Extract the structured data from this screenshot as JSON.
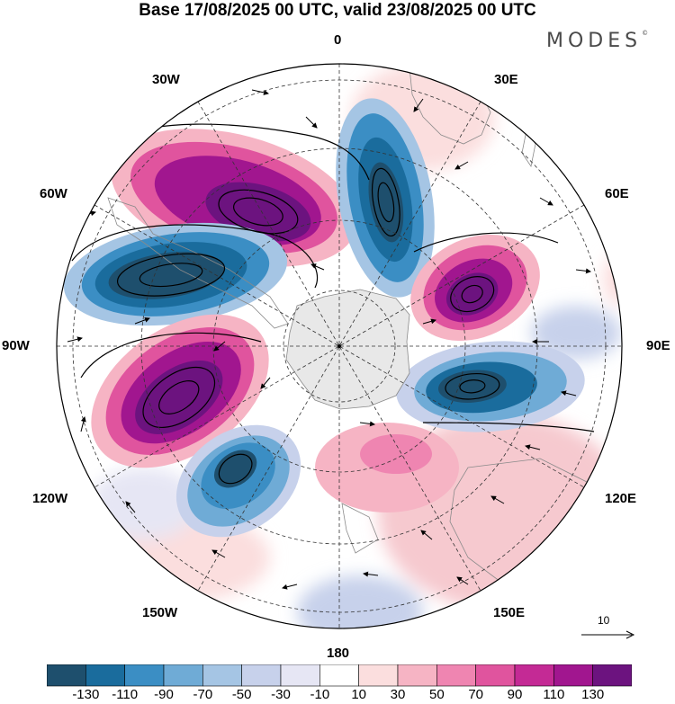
{
  "title": "Base 17/08/2025 00 UTC, valid 23/08/2025 00 UTC",
  "logo": {
    "text": "MODES",
    "mark": "©"
  },
  "longitude_labels": {
    "lon_0": "0",
    "lon_30e": "30E",
    "lon_60e": "60E",
    "lon_90e": "90E",
    "lon_120e": "120E",
    "lon_150e": "150E",
    "lon_180": "180",
    "lon_150w": "150W",
    "lon_120w": "120W",
    "lon_90w": "90W",
    "lon_60w": "60W",
    "lon_30w": "30W"
  },
  "reference_vector": {
    "label": "10"
  },
  "colorbar": {
    "labels": [
      "-130",
      "-110",
      "-90",
      "-70",
      "-50",
      "-30",
      "-10",
      "10",
      "30",
      "50",
      "70",
      "90",
      "110",
      "130"
    ],
    "colors": [
      "#1e4f6d",
      "#1a6c9d",
      "#3b8ec4",
      "#6fabd6",
      "#a5c5e4",
      "#c7d1eb",
      "#e6e6f4",
      "#ffffff",
      "#fbdede",
      "#f6b4c4",
      "#ef85b1",
      "#e0549e",
      "#c42a95",
      "#a1168f",
      "#6c137f"
    ]
  },
  "colors": {
    "land": "#e8e8e8",
    "coast": "#8a8a8a",
    "contour": "#000000"
  }
}
